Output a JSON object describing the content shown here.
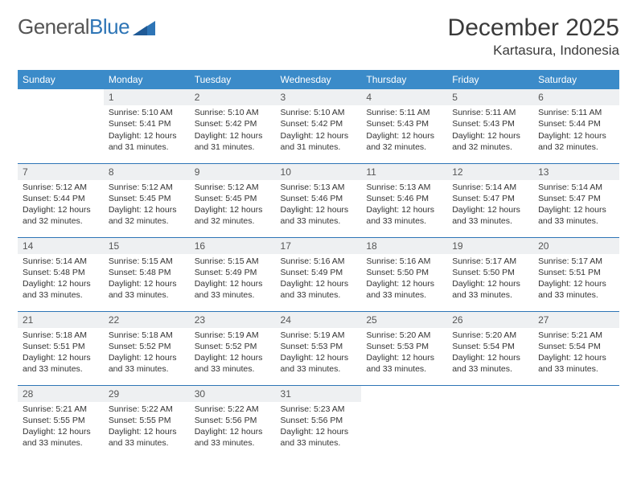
{
  "brand": {
    "part1": "General",
    "part2": "Blue"
  },
  "title": "December 2025",
  "location": "Kartasura, Indonesia",
  "colors": {
    "header_bg": "#3b8bc9",
    "header_text": "#ffffff",
    "rule": "#2e75b6",
    "dayband": "#eef0f2",
    "text": "#333333",
    "title_text": "#3a3a3a"
  },
  "dayNames": [
    "Sunday",
    "Monday",
    "Tuesday",
    "Wednesday",
    "Thursday",
    "Friday",
    "Saturday"
  ],
  "weeks": [
    [
      null,
      {
        "n": "1",
        "sr": "5:10 AM",
        "ss": "5:41 PM",
        "dl": "12 hours and 31 minutes."
      },
      {
        "n": "2",
        "sr": "5:10 AM",
        "ss": "5:42 PM",
        "dl": "12 hours and 31 minutes."
      },
      {
        "n": "3",
        "sr": "5:10 AM",
        "ss": "5:42 PM",
        "dl": "12 hours and 31 minutes."
      },
      {
        "n": "4",
        "sr": "5:11 AM",
        "ss": "5:43 PM",
        "dl": "12 hours and 32 minutes."
      },
      {
        "n": "5",
        "sr": "5:11 AM",
        "ss": "5:43 PM",
        "dl": "12 hours and 32 minutes."
      },
      {
        "n": "6",
        "sr": "5:11 AM",
        "ss": "5:44 PM",
        "dl": "12 hours and 32 minutes."
      }
    ],
    [
      {
        "n": "7",
        "sr": "5:12 AM",
        "ss": "5:44 PM",
        "dl": "12 hours and 32 minutes."
      },
      {
        "n": "8",
        "sr": "5:12 AM",
        "ss": "5:45 PM",
        "dl": "12 hours and 32 minutes."
      },
      {
        "n": "9",
        "sr": "5:12 AM",
        "ss": "5:45 PM",
        "dl": "12 hours and 32 minutes."
      },
      {
        "n": "10",
        "sr": "5:13 AM",
        "ss": "5:46 PM",
        "dl": "12 hours and 33 minutes."
      },
      {
        "n": "11",
        "sr": "5:13 AM",
        "ss": "5:46 PM",
        "dl": "12 hours and 33 minutes."
      },
      {
        "n": "12",
        "sr": "5:14 AM",
        "ss": "5:47 PM",
        "dl": "12 hours and 33 minutes."
      },
      {
        "n": "13",
        "sr": "5:14 AM",
        "ss": "5:47 PM",
        "dl": "12 hours and 33 minutes."
      }
    ],
    [
      {
        "n": "14",
        "sr": "5:14 AM",
        "ss": "5:48 PM",
        "dl": "12 hours and 33 minutes."
      },
      {
        "n": "15",
        "sr": "5:15 AM",
        "ss": "5:48 PM",
        "dl": "12 hours and 33 minutes."
      },
      {
        "n": "16",
        "sr": "5:15 AM",
        "ss": "5:49 PM",
        "dl": "12 hours and 33 minutes."
      },
      {
        "n": "17",
        "sr": "5:16 AM",
        "ss": "5:49 PM",
        "dl": "12 hours and 33 minutes."
      },
      {
        "n": "18",
        "sr": "5:16 AM",
        "ss": "5:50 PM",
        "dl": "12 hours and 33 minutes."
      },
      {
        "n": "19",
        "sr": "5:17 AM",
        "ss": "5:50 PM",
        "dl": "12 hours and 33 minutes."
      },
      {
        "n": "20",
        "sr": "5:17 AM",
        "ss": "5:51 PM",
        "dl": "12 hours and 33 minutes."
      }
    ],
    [
      {
        "n": "21",
        "sr": "5:18 AM",
        "ss": "5:51 PM",
        "dl": "12 hours and 33 minutes."
      },
      {
        "n": "22",
        "sr": "5:18 AM",
        "ss": "5:52 PM",
        "dl": "12 hours and 33 minutes."
      },
      {
        "n": "23",
        "sr": "5:19 AM",
        "ss": "5:52 PM",
        "dl": "12 hours and 33 minutes."
      },
      {
        "n": "24",
        "sr": "5:19 AM",
        "ss": "5:53 PM",
        "dl": "12 hours and 33 minutes."
      },
      {
        "n": "25",
        "sr": "5:20 AM",
        "ss": "5:53 PM",
        "dl": "12 hours and 33 minutes."
      },
      {
        "n": "26",
        "sr": "5:20 AM",
        "ss": "5:54 PM",
        "dl": "12 hours and 33 minutes."
      },
      {
        "n": "27",
        "sr": "5:21 AM",
        "ss": "5:54 PM",
        "dl": "12 hours and 33 minutes."
      }
    ],
    [
      {
        "n": "28",
        "sr": "5:21 AM",
        "ss": "5:55 PM",
        "dl": "12 hours and 33 minutes."
      },
      {
        "n": "29",
        "sr": "5:22 AM",
        "ss": "5:55 PM",
        "dl": "12 hours and 33 minutes."
      },
      {
        "n": "30",
        "sr": "5:22 AM",
        "ss": "5:56 PM",
        "dl": "12 hours and 33 minutes."
      },
      {
        "n": "31",
        "sr": "5:23 AM",
        "ss": "5:56 PM",
        "dl": "12 hours and 33 minutes."
      },
      null,
      null,
      null
    ]
  ],
  "labels": {
    "sunrise": "Sunrise:",
    "sunset": "Sunset:",
    "daylight": "Daylight:"
  }
}
